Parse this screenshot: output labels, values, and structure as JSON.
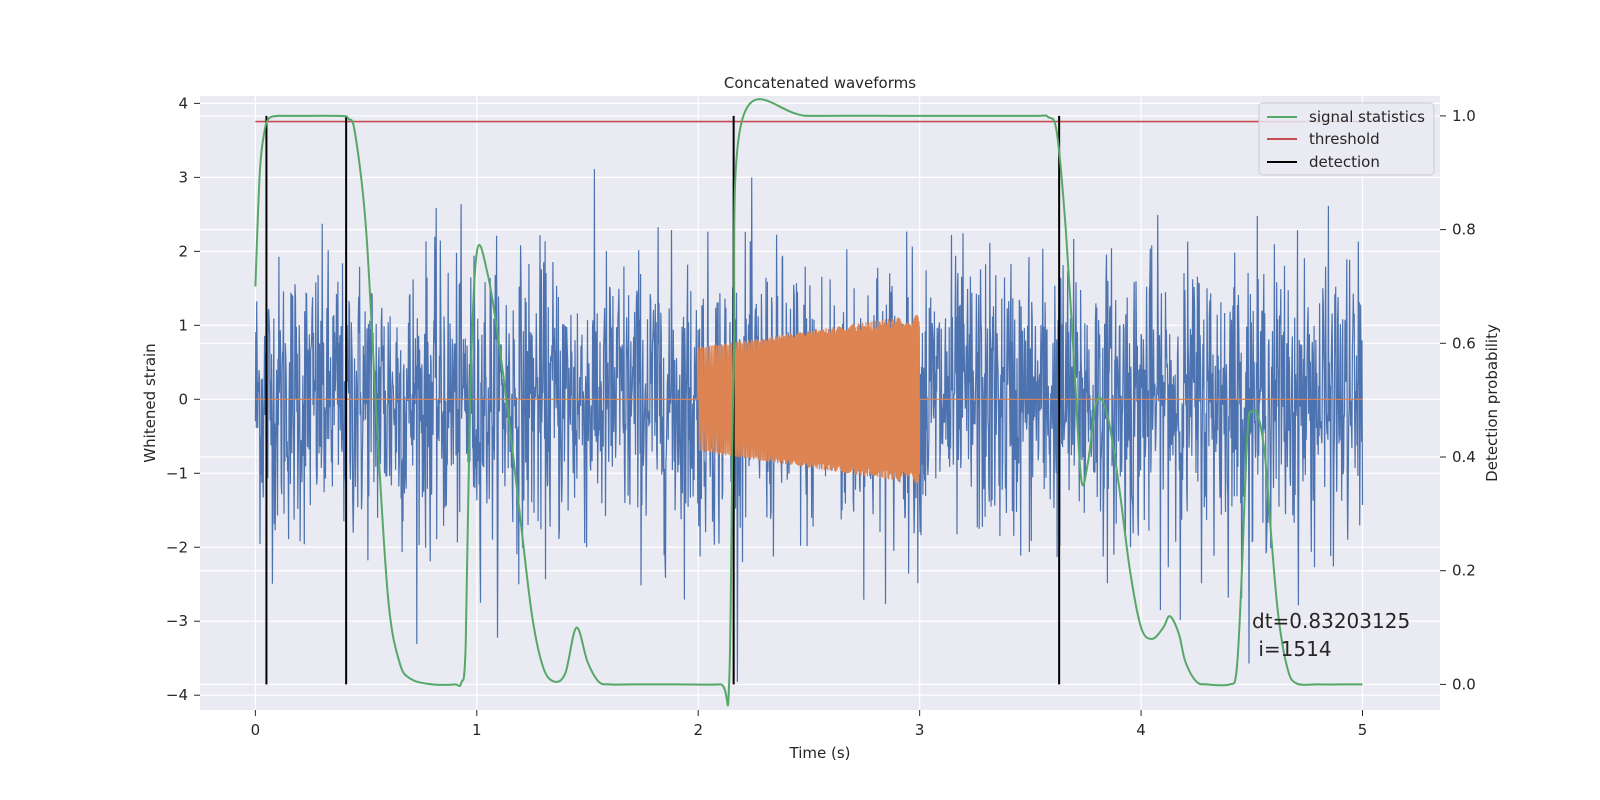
{
  "chart_data": {
    "type": "line",
    "title": "Concatenated waveforms",
    "xlabel": "Time (s)",
    "ylabel_left": "Whitened strain",
    "ylabel_right": "Detection probability",
    "xlim": [
      -0.25,
      5.35
    ],
    "ylim_left": [
      -4.2,
      4.1
    ],
    "ylim_right": [
      -0.045,
      1.035
    ],
    "x_ticks": [
      0,
      1,
      2,
      3,
      4,
      5
    ],
    "x_tick_labels": [
      "0",
      "1",
      "2",
      "3",
      "4",
      "5"
    ],
    "y_left_ticks": [
      -4,
      -3,
      -2,
      -1,
      0,
      1,
      2,
      3,
      4
    ],
    "y_left_tick_labels": [
      "−4",
      "−3",
      "−2",
      "−1",
      "0",
      "1",
      "2",
      "3",
      "4"
    ],
    "y_right_ticks": [
      0.0,
      0.2,
      0.4,
      0.6,
      0.8,
      1.0
    ],
    "y_right_tick_labels": [
      "0.0",
      "0.2",
      "0.4",
      "0.6",
      "0.8",
      "1.0"
    ],
    "grid": true,
    "legend_position": "top-right",
    "legend": [
      {
        "label": "signal statistics",
        "color": "#55a868"
      },
      {
        "label": "threshold",
        "color": "#c44e52"
      },
      {
        "label": "detection",
        "color": "#000000"
      }
    ],
    "colors": {
      "strain": "#4c72b0",
      "injection": "#dd8452",
      "statistic": "#55a868",
      "threshold": "#c44e52",
      "detection": "#000000",
      "axes_bg": "#eaeaf2",
      "grid": "#ffffff"
    },
    "strain": {
      "x_range": [
        0,
        5
      ],
      "amplitude_range": [
        -3.85,
        3.75
      ]
    },
    "injection": {
      "x_range": [
        2.0,
        3.0
      ],
      "amplitude_start": 0.7,
      "amplitude_end": 1.15
    },
    "threshold": {
      "value": 0.99,
      "x_range": [
        0,
        5
      ]
    },
    "detections": [
      0.05,
      0.41,
      2.16,
      3.63
    ],
    "statistic": {
      "x": [
        0.0,
        0.02,
        0.04,
        0.06,
        0.1,
        0.15,
        0.38,
        0.42,
        0.45,
        0.5,
        0.55,
        0.6,
        0.65,
        0.7,
        0.8,
        0.9,
        0.93,
        0.95,
        0.97,
        1.0,
        1.05,
        1.1,
        1.15,
        1.2,
        1.25,
        1.3,
        1.35,
        1.4,
        1.45,
        1.5,
        1.55,
        1.6,
        1.7,
        1.9,
        2.1,
        2.14,
        2.16,
        2.2,
        2.5,
        3.0,
        3.5,
        3.58,
        3.62,
        3.66,
        3.7,
        3.73,
        3.76,
        3.8,
        3.85,
        3.9,
        3.95,
        4.0,
        4.05,
        4.1,
        4.13,
        4.17,
        4.2,
        4.25,
        4.3,
        4.4,
        4.43,
        4.45,
        4.48,
        4.5,
        4.53,
        4.56,
        4.59,
        4.62,
        4.66,
        4.7,
        4.8,
        4.9,
        5.0
      ],
      "values": [
        0.7,
        0.9,
        0.97,
        0.995,
        1.0,
        1.0,
        1.0,
        0.995,
        0.97,
        0.8,
        0.45,
        0.15,
        0.04,
        0.01,
        0.0,
        0.0,
        0.003,
        0.07,
        0.5,
        0.76,
        0.72,
        0.6,
        0.45,
        0.28,
        0.12,
        0.03,
        0.005,
        0.02,
        0.1,
        0.04,
        0.005,
        0.0,
        0.0,
        0.0,
        0.0,
        0.005,
        0.55,
        0.995,
        1.0,
        1.0,
        1.0,
        0.998,
        0.97,
        0.8,
        0.55,
        0.36,
        0.39,
        0.5,
        0.47,
        0.35,
        0.2,
        0.1,
        0.08,
        0.1,
        0.12,
        0.09,
        0.04,
        0.005,
        0.0,
        0.0,
        0.02,
        0.15,
        0.44,
        0.48,
        0.47,
        0.4,
        0.25,
        0.12,
        0.03,
        0.002,
        0.0,
        0.0,
        0.0
      ]
    },
    "annotation": {
      "line1": "dt=0.83203125",
      "line2": " i=1514"
    }
  }
}
